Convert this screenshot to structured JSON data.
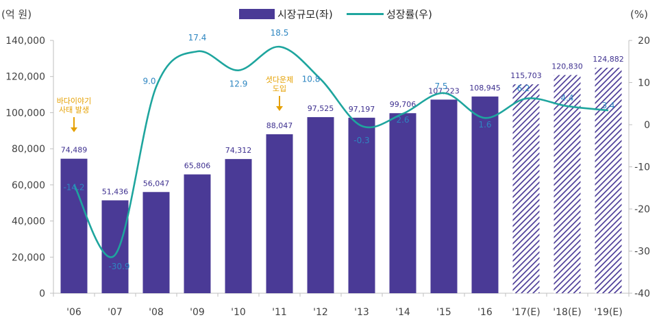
{
  "chart_data": {
    "type": "bar+line",
    "categories": [
      "'06",
      "'07",
      "'08",
      "'09",
      "'10",
      "'11",
      "'12",
      "'13",
      "'14",
      "'15",
      "'16",
      "'17(E)",
      "'18(E)",
      "'19(E)"
    ],
    "series": [
      {
        "name": "시장규모(좌)",
        "type": "bar",
        "axis": "left",
        "values": [
          74489,
          51436,
          56047,
          65806,
          74312,
          88047,
          97525,
          97197,
          99706,
          107223,
          108945,
          115703,
          120830,
          124882
        ],
        "labels": [
          "74,489",
          "51,436",
          "56,047",
          "65,806",
          "74,312",
          "88,047",
          "97,525",
          "97,197",
          "99,706",
          "107,223",
          "108,945",
          "115,703",
          "120,830",
          "124,882"
        ],
        "estimated": [
          false,
          false,
          false,
          false,
          false,
          false,
          false,
          false,
          false,
          false,
          false,
          true,
          true,
          true
        ]
      },
      {
        "name": "성장률(우)",
        "type": "line",
        "axis": "right",
        "values": [
          -14.2,
          -30.9,
          9.0,
          17.4,
          12.9,
          18.5,
          10.8,
          -0.3,
          2.6,
          7.5,
          1.6,
          6.2,
          4.4,
          3.4
        ],
        "labels": [
          "-14.2",
          "-30.9",
          "9.0",
          "17.4",
          "12.9",
          "18.5",
          "10.8",
          "-0.3",
          "2.6",
          "7.5",
          "1.6",
          "6.2",
          "4.4",
          "3.4"
        ]
      }
    ],
    "left_axis": {
      "unit": "(억 원)",
      "range": [
        0,
        140000
      ],
      "ticks": [
        0,
        20000,
        40000,
        60000,
        80000,
        100000,
        120000,
        140000
      ],
      "tick_labels": [
        "0",
        "20,000",
        "40,000",
        "60,000",
        "80,000",
        "100,000",
        "120,000",
        "140,000"
      ]
    },
    "right_axis": {
      "unit": "(%)",
      "range": [
        -40,
        20
      ],
      "ticks": [
        -40,
        -30,
        -20,
        -10,
        0,
        10,
        20
      ],
      "tick_labels": [
        "-40",
        "-30",
        "-20",
        "-10",
        "0",
        "10",
        "20"
      ]
    },
    "legend": {
      "position": "top-center",
      "items": [
        "시장규모(좌)",
        "성장률(우)"
      ]
    },
    "annotations": [
      {
        "category_index": 0,
        "lines": [
          "바다이야기",
          "사태 발생"
        ]
      },
      {
        "category_index": 5,
        "lines": [
          "셧다운제",
          "도입"
        ]
      }
    ],
    "colors": {
      "bar": "#4a3a96",
      "bar_label": "#3d2f8f",
      "line": "#1ea59e",
      "growth_label": "#2e86c1",
      "annotation": "#e5a000",
      "axis": "#bfbfbf",
      "text": "#404040"
    }
  }
}
